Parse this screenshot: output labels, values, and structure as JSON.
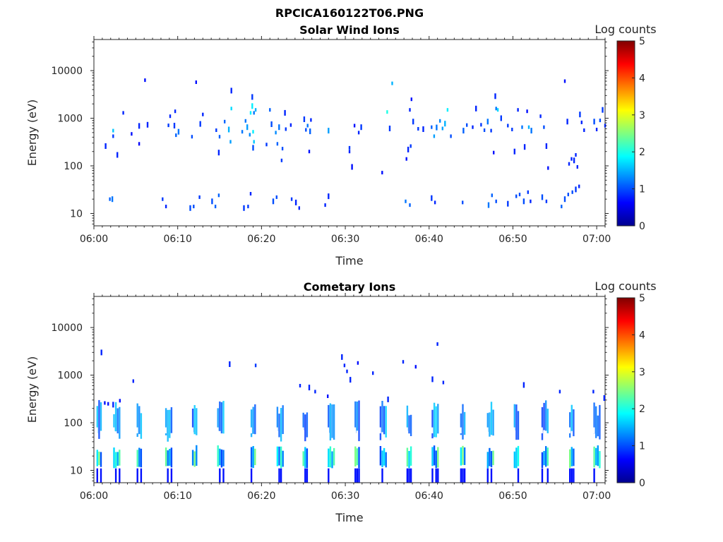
{
  "figure": {
    "filename": "RPCICA160122T06.PNG"
  },
  "chart_data": [
    {
      "type": "heatmap",
      "title": "Solar Wind Ions",
      "xlabel": "Time",
      "ylabel": "Energy (eV)",
      "x_ticks": [
        "06:00",
        "06:10",
        "06:20",
        "06:30",
        "06:40",
        "06:50",
        "07:00"
      ],
      "xlim_minutes": [
        0,
        61
      ],
      "y_scale": "log",
      "y_ticks": [
        10,
        100,
        1000,
        10000
      ],
      "y_tick_labels": [
        "10",
        "100",
        "1000",
        "10000"
      ],
      "ylim": [
        5.5,
        45000
      ],
      "colorbar": {
        "label": "Log counts",
        "range": [
          0,
          5
        ],
        "ticks": [
          "0",
          "1",
          "2",
          "3",
          "4",
          "5"
        ]
      },
      "series": [
        {
          "name": "hits",
          "points": [
            [
              1.3,
              260,
              0.8
            ],
            [
              2.2,
              420,
              0.9
            ],
            [
              2.2,
              550,
              1.6
            ],
            [
              2.7,
              170,
              0.8
            ],
            [
              3.4,
              1300,
              0.8
            ],
            [
              4.4,
              470,
              0.7
            ],
            [
              5.3,
              690,
              0.8
            ],
            [
              5.3,
              290,
              0.6
            ],
            [
              6.0,
              6300,
              0.7
            ],
            [
              6.3,
              730,
              0.8
            ],
            [
              8.8,
              710,
              0.9
            ],
            [
              9.0,
              1100,
              0.8
            ],
            [
              9.5,
              700,
              0.9
            ],
            [
              9.6,
              1400,
              0.8
            ],
            [
              9.7,
              440,
              1.1
            ],
            [
              10.0,
              520,
              1.2
            ],
            [
              11.6,
              410,
              1.0
            ],
            [
              12.1,
              5700,
              0.7
            ],
            [
              12.6,
              760,
              0.9
            ],
            [
              12.9,
              1200,
              0.8
            ],
            [
              14.5,
              560,
              0.9
            ],
            [
              14.8,
              190,
              0.8
            ],
            [
              14.9,
              410,
              1.1
            ],
            [
              15.5,
              850,
              1.1
            ],
            [
              16.0,
              580,
              1.5
            ],
            [
              16.2,
              320,
              1.4
            ],
            [
              16.3,
              1600,
              1.7
            ],
            [
              16.3,
              3800,
              0.8
            ],
            [
              17.6,
              520,
              1.2
            ],
            [
              18.0,
              880,
              1.2
            ],
            [
              18.2,
              650,
              1.4
            ],
            [
              18.5,
              450,
              1.3
            ],
            [
              18.6,
              1300,
              1.8
            ],
            [
              18.8,
              1800,
              1.8
            ],
            [
              18.9,
              520,
              1.8
            ],
            [
              19.0,
              320,
              1.6
            ],
            [
              18.8,
              2800,
              0.9
            ],
            [
              19.0,
              1300,
              1.2
            ],
            [
              19.2,
              1500,
              1.5
            ],
            [
              18.9,
              240,
              1.0
            ],
            [
              20.5,
              280,
              0.9
            ],
            [
              20.9,
              1500,
              1.1
            ],
            [
              21.1,
              750,
              1.0
            ],
            [
              21.6,
              500,
              1.3
            ],
            [
              21.8,
              290,
              1.1
            ],
            [
              22.0,
              650,
              1.2
            ],
            [
              22.4,
              230,
              1.0
            ],
            [
              22.3,
              130,
              0.9
            ],
            [
              22.7,
              1300,
              0.8
            ],
            [
              22.8,
              590,
              0.9
            ],
            [
              23.4,
              720,
              0.8
            ],
            [
              25.0,
              950,
              0.9
            ],
            [
              25.2,
              570,
              1.0
            ],
            [
              25.4,
              700,
              1.2
            ],
            [
              25.7,
              530,
              1.1
            ],
            [
              25.8,
              920,
              0.8
            ],
            [
              25.6,
              200,
              0.7
            ],
            [
              27.9,
              550,
              1.4
            ],
            [
              30.4,
              200,
              0.8
            ],
            [
              30.4,
              240,
              0.9
            ],
            [
              30.7,
              95,
              0.7
            ],
            [
              31.0,
              700,
              0.7
            ],
            [
              31.5,
              500,
              0.8
            ],
            [
              31.8,
              650,
              0.9
            ],
            [
              34.3,
              72,
              0.7
            ],
            [
              34.9,
              1350,
              2.0
            ],
            [
              35.2,
              610,
              0.9
            ],
            [
              35.5,
              5400,
              1.5
            ],
            [
              37.2,
              140,
              0.7
            ],
            [
              37.4,
              220,
              0.8
            ],
            [
              37.6,
              1500,
              0.8
            ],
            [
              37.7,
              260,
              0.9
            ],
            [
              38.0,
              850,
              0.9
            ],
            [
              37.8,
              2500,
              0.7
            ],
            [
              38.6,
              600,
              0.9
            ],
            [
              39.2,
              590,
              0.8
            ],
            [
              40.2,
              650,
              1.1
            ],
            [
              40.5,
              420,
              1.4
            ],
            [
              40.8,
              640,
              1.2
            ],
            [
              41.2,
              880,
              1.3
            ],
            [
              41.5,
              610,
              1.4
            ],
            [
              41.8,
              770,
              1.5
            ],
            [
              42.1,
              1500,
              1.8
            ],
            [
              42.5,
              420,
              1.0
            ],
            [
              44.0,
              550,
              1.1
            ],
            [
              44.4,
              720,
              1.0
            ],
            [
              45.1,
              650,
              0.8
            ],
            [
              45.5,
              1600,
              0.8
            ],
            [
              46.1,
              730,
              0.9
            ],
            [
              46.5,
              560,
              1.0
            ],
            [
              46.9,
              850,
              1.2
            ],
            [
              47.3,
              550,
              0.9
            ],
            [
              47.6,
              190,
              0.7
            ],
            [
              47.8,
              2900,
              0.8
            ],
            [
              47.9,
              1600,
              1.2
            ],
            [
              48.1,
              1500,
              1.7
            ],
            [
              48.5,
              1000,
              0.9
            ],
            [
              49.3,
              700,
              0.9
            ],
            [
              49.8,
              580,
              0.9
            ],
            [
              50.1,
              200,
              0.8
            ],
            [
              50.5,
              1500,
              0.8
            ],
            [
              51.0,
              650,
              1.2
            ],
            [
              51.3,
              250,
              0.8
            ],
            [
              51.6,
              1400,
              0.7
            ],
            [
              51.8,
              650,
              1.5
            ],
            [
              52.1,
              550,
              1.2
            ],
            [
              53.2,
              1100,
              0.8
            ],
            [
              53.6,
              650,
              1.0
            ],
            [
              53.9,
              260,
              0.8
            ],
            [
              54.1,
              90,
              0.7
            ],
            [
              56.1,
              6000,
              0.7
            ],
            [
              56.4,
              850,
              0.8
            ],
            [
              56.6,
              110,
              0.8
            ],
            [
              56.9,
              140,
              0.8
            ],
            [
              57.2,
              130,
              0.8
            ],
            [
              57.4,
              170,
              0.8
            ],
            [
              57.6,
              95,
              0.8
            ],
            [
              57.9,
              1200,
              0.9
            ],
            [
              58.1,
              820,
              0.8
            ],
            [
              58.4,
              560,
              0.8
            ],
            [
              59.6,
              850,
              1.0
            ],
            [
              59.9,
              580,
              0.8
            ],
            [
              60.3,
              900,
              1.0
            ],
            [
              60.6,
              1500,
              0.9
            ],
            [
              60.9,
              700,
              0.8
            ],
            [
              1.8,
              20,
              1.1
            ],
            [
              2.1,
              20,
              1.2
            ],
            [
              8.1,
              20,
              0.9
            ],
            [
              8.5,
              14,
              0.8
            ],
            [
              11.4,
              13,
              1.0
            ],
            [
              11.8,
              14,
              1.0
            ],
            [
              12.5,
              22,
              0.9
            ],
            [
              14.0,
              18,
              1.0
            ],
            [
              14.4,
              14,
              1.1
            ],
            [
              14.8,
              24,
              1.1
            ],
            [
              17.8,
              13,
              0.9
            ],
            [
              18.3,
              14,
              0.9
            ],
            [
              18.6,
              26,
              0.8
            ],
            [
              21.3,
              18,
              1.0
            ],
            [
              21.7,
              22,
              1.0
            ],
            [
              23.5,
              20,
              0.9
            ],
            [
              24.0,
              17,
              0.8
            ],
            [
              24.4,
              13,
              0.8
            ],
            [
              27.5,
              15,
              0.8
            ],
            [
              27.9,
              23,
              0.8
            ],
            [
              37.1,
              18,
              1.2
            ],
            [
              37.6,
              15,
              1.1
            ],
            [
              40.2,
              21,
              0.9
            ],
            [
              40.6,
              17,
              0.8
            ],
            [
              43.9,
              17,
              1.0
            ],
            [
              47.0,
              15,
              1.2
            ],
            [
              47.4,
              24,
              1.1
            ],
            [
              47.9,
              18,
              1.0
            ],
            [
              49.3,
              16,
              0.9
            ],
            [
              50.3,
              23,
              1.0
            ],
            [
              50.7,
              25,
              1.0
            ],
            [
              51.2,
              18,
              1.0
            ],
            [
              51.7,
              28,
              0.9
            ],
            [
              52.0,
              18,
              0.8
            ],
            [
              53.4,
              22,
              1.0
            ],
            [
              53.9,
              18,
              0.9
            ],
            [
              55.7,
              14,
              1.1
            ],
            [
              56.1,
              20,
              1.0
            ],
            [
              56.5,
              25,
              1.0
            ],
            [
              57.0,
              28,
              1.0
            ],
            [
              57.4,
              32,
              0.9
            ],
            [
              57.8,
              37,
              0.8
            ]
          ]
        }
      ]
    },
    {
      "type": "heatmap",
      "title": "Cometary Ions",
      "xlabel": "Time",
      "ylabel": "Energy (eV)",
      "x_ticks": [
        "06:00",
        "06:10",
        "06:20",
        "06:30",
        "06:40",
        "06:50",
        "07:00"
      ],
      "xlim_minutes": [
        0,
        61
      ],
      "y_scale": "log",
      "y_ticks": [
        10,
        100,
        1000,
        10000
      ],
      "y_tick_labels": [
        "10",
        "100",
        "1000",
        "10000"
      ],
      "ylim": [
        5.5,
        45000
      ],
      "colorbar": {
        "label": "Log counts",
        "range": [
          0,
          5
        ],
        "ticks": [
          "0",
          "1",
          "2",
          "3",
          "4",
          "5"
        ]
      },
      "series": [
        {
          "name": "bursts",
          "points": [
            [
              0.8,
              3000,
              0.8
            ],
            [
              1.2,
              260,
              0.7
            ],
            [
              1.6,
              250,
              0.7
            ],
            [
              2.2,
              240,
              0.8
            ],
            [
              3.0,
              290,
              0.7
            ],
            [
              4.6,
              750,
              0.8
            ],
            [
              16.1,
              1700,
              0.8
            ],
            [
              19.2,
              1600,
              0.9
            ],
            [
              24.5,
              600,
              0.8
            ],
            [
              25.6,
              550,
              0.8
            ],
            [
              26.3,
              450,
              0.8
            ],
            [
              27.8,
              360,
              0.7
            ],
            [
              29.5,
              2400,
              0.8
            ],
            [
              29.8,
              1600,
              0.8
            ],
            [
              30.1,
              1200,
              0.8
            ],
            [
              30.5,
              800,
              0.8
            ],
            [
              31.4,
              1800,
              0.7
            ],
            [
              33.2,
              1100,
              0.8
            ],
            [
              35.0,
              310,
              0.8
            ],
            [
              36.8,
              1900,
              0.8
            ],
            [
              38.3,
              1500,
              0.7
            ],
            [
              40.3,
              820,
              0.8
            ],
            [
              40.9,
              4500,
              0.8
            ],
            [
              41.6,
              700,
              0.8
            ],
            [
              51.2,
              620,
              0.8
            ],
            [
              55.5,
              450,
              0.8
            ],
            [
              59.5,
              450,
              0.8
            ],
            [
              60.8,
              330,
              0.8
            ]
          ]
        },
        {
          "name": "columns",
          "minutes": [
            0.3,
            2.3,
            5.1,
            8.5,
            11.7,
            14.7,
            18.7,
            21.8,
            24.9,
            27.9,
            31.1,
            34.1,
            37.3,
            40.3,
            43.7,
            46.9,
            50.1,
            53.4,
            56.7,
            59.6
          ]
        }
      ]
    }
  ]
}
